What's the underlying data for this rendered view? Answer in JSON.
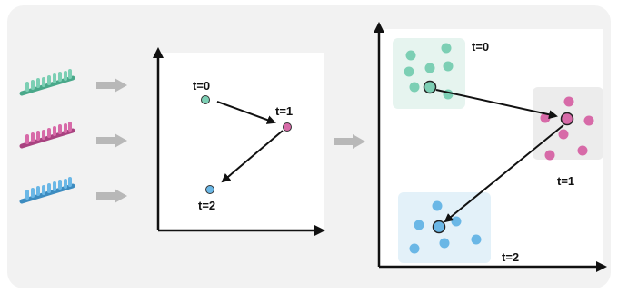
{
  "colors": {
    "background": "#f2f2f2",
    "panel": "#ffffff",
    "arrow_gray": "#b8b8b8",
    "axis": "#111111",
    "green": "#7ccfb4",
    "pink": "#d76aa8",
    "blue": "#6ab7e6",
    "green_bg": "#e6f4ef",
    "pink_bg": "#ececec",
    "blue_bg": "#e3f1f9"
  },
  "icons": [
    "green-cell-icon",
    "pink-cell-icon",
    "blue-cell-icon",
    "gray-right-arrow-icon"
  ],
  "middle_plot": {
    "labels": {
      "t0": "t=0",
      "t1": "t=1",
      "t2": "t=2"
    }
  },
  "right_plot": {
    "labels": {
      "t0": "t=0",
      "t1": "t=1",
      "t2": "t=2"
    }
  }
}
